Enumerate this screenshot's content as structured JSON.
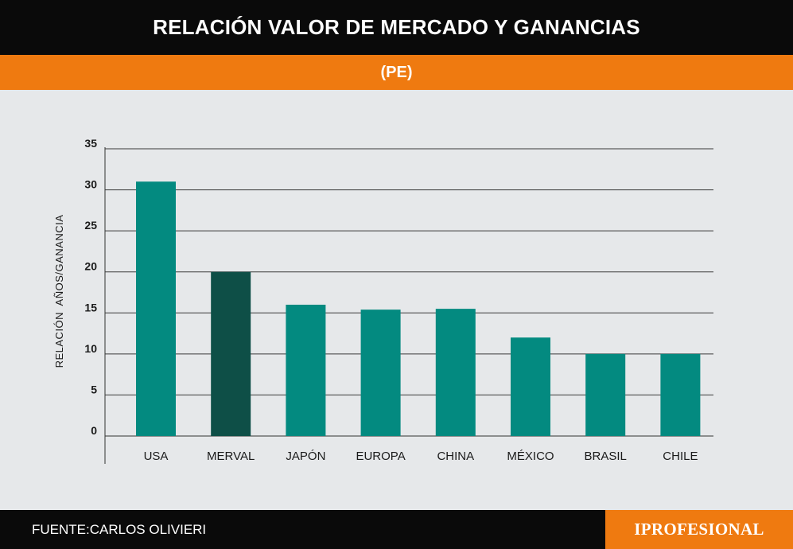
{
  "header": {
    "title": "RELACIÓN VALOR DE MERCADO Y GANANCIAS",
    "subtitle": "(PE)"
  },
  "footer": {
    "source": "FUENTE:CARLOS OLIVIERI",
    "brand": "IPROFESIONAL"
  },
  "colors": {
    "bar_default": "#038a80",
    "bar_highlight": "#0e4f47",
    "title_bg": "#0a0a0a",
    "accent": "#ef7a10",
    "plot_bg": "#e6e8ea"
  },
  "chart_data": {
    "type": "bar",
    "title": "RELACIÓN VALOR DE MERCADO Y GANANCIAS",
    "subtitle": "(PE)",
    "xlabel": "",
    "ylabel": "RELACIÓN  AÑOS/GANANCIA",
    "categories": [
      "USA",
      "MERVAL",
      "JAPÓN",
      "EUROPA",
      "CHINA",
      "MÉXICO",
      "BRASIL",
      "CHILE"
    ],
    "values": [
      31,
      20,
      16,
      15.4,
      15.5,
      12,
      10,
      10
    ],
    "highlight_category": "MERVAL",
    "ylim": [
      0,
      35
    ],
    "yticks": [
      0,
      5,
      10,
      15,
      20,
      25,
      30,
      35
    ],
    "grid": true,
    "legend": "none"
  }
}
